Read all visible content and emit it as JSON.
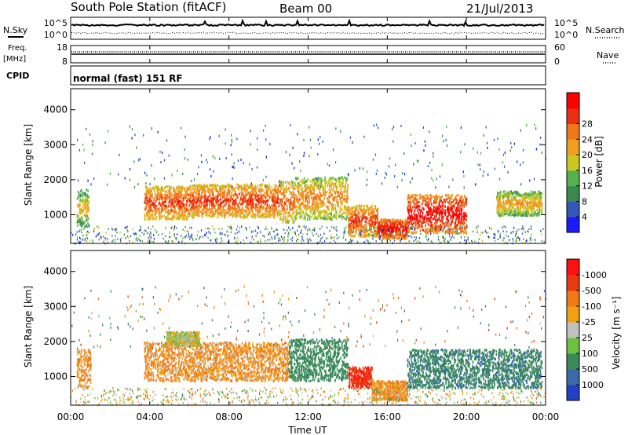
{
  "header": {
    "station": "South Pole Station (fitACF)",
    "beam": "Beam 00",
    "date": "21/Jul/2013"
  },
  "left_labels": {
    "nsky": "N.Sky",
    "freq": "Freq.",
    "mhz": "[MHz]",
    "cpid": "CPID"
  },
  "right_labels": {
    "nsearch": "N.Search",
    "nave": "Nave"
  },
  "cpid_text": "normal (fast) 151 RF",
  "noise_panel": {
    "left_ticks": [
      "10^5",
      "10^0"
    ],
    "right_ticks": [
      "10^5",
      "10^0"
    ]
  },
  "freq_panel": {
    "left_ticks": [
      "18",
      "8"
    ],
    "right_ticks": [
      "60",
      "0"
    ]
  },
  "x_axis": {
    "label": "Time UT",
    "ticks": [
      "00:00",
      "04:00",
      "08:00",
      "12:00",
      "16:00",
      "20:00",
      "00:00"
    ]
  },
  "y_axis": {
    "label": "Slant Range [km]",
    "ticks": [
      "1000",
      "2000",
      "3000",
      "4000"
    ]
  },
  "power_colorbar": {
    "label": "Power [dB]",
    "ticks": [
      "4",
      "8",
      "12",
      "16",
      "20",
      "24",
      "28"
    ],
    "colors": [
      "#1a1aff",
      "#3358b8",
      "#3a8a50",
      "#55b050",
      "#c8c820",
      "#f0a020",
      "#f07818",
      "#e83010",
      "#ff0000"
    ]
  },
  "velocity_colorbar": {
    "label": "Velocity [m s⁻¹]",
    "ticks": [
      "1000",
      "500",
      "100",
      "25",
      "-25",
      "-100",
      "-500",
      "-1000"
    ],
    "colors": [
      "#2040c8",
      "#3a6aa8",
      "#3a8a5a",
      "#6ec040",
      "#c0c0c0",
      "#f0a010",
      "#f07a18",
      "#e83a10",
      "#ff1010"
    ]
  },
  "chart_data": [
    {
      "type": "heatmap",
      "title": "Power",
      "xlabel": "Time UT",
      "ylabel": "Slant Range [km]",
      "xlim": [
        0,
        24
      ],
      "ylim": [
        180,
        4600
      ],
      "colorbar_label": "Power [dB]",
      "colorbar_range": [
        0,
        32
      ],
      "scatter_regions": [
        {
          "t": [
            0.3,
            0.9
          ],
          "r": [
            700,
            1750
          ],
          "level": 12
        },
        {
          "t": [
            3.7,
            6.0
          ],
          "r": [
            900,
            1850
          ],
          "level": 20
        },
        {
          "t": [
            6.0,
            10.5
          ],
          "r": [
            950,
            1900
          ],
          "level": 20
        },
        {
          "t": [
            10.5,
            11.3
          ],
          "r": [
            800,
            2000
          ],
          "level": 18
        },
        {
          "t": [
            11.3,
            14.0
          ],
          "r": [
            900,
            2100
          ],
          "level": 16
        },
        {
          "t": [
            14.0,
            15.5
          ],
          "r": [
            400,
            1300
          ],
          "level": 20
        },
        {
          "t": [
            15.5,
            17.0
          ],
          "r": [
            350,
            900
          ],
          "level": 24
        },
        {
          "t": [
            17.0,
            20.0
          ],
          "r": [
            500,
            1600
          ],
          "level": 24
        },
        {
          "t": [
            21.5,
            23.8
          ],
          "r": [
            1000,
            1700
          ],
          "level": 14
        }
      ]
    },
    {
      "type": "heatmap",
      "title": "Velocity",
      "xlabel": "Time UT",
      "ylabel": "Slant Range [km]",
      "xlim": [
        0,
        24
      ],
      "ylim": [
        180,
        4600
      ],
      "colorbar_label": "Velocity [m s⁻¹]",
      "colorbar_range": [
        -1000,
        1000
      ],
      "scatter_regions": [
        {
          "t": [
            0.3,
            1.0
          ],
          "r": [
            700,
            1800
          ],
          "level": -100
        },
        {
          "t": [
            3.7,
            11.0
          ],
          "r": [
            900,
            2000
          ],
          "level": -100
        },
        {
          "t": [
            4.8,
            6.5
          ],
          "r": [
            1900,
            2300
          ],
          "level": 0
        },
        {
          "t": [
            11.0,
            14.0
          ],
          "r": [
            900,
            2100
          ],
          "level": 200
        },
        {
          "t": [
            14.0,
            15.2
          ],
          "r": [
            700,
            1300
          ],
          "level": -900
        },
        {
          "t": [
            15.2,
            17.0
          ],
          "r": [
            350,
            900
          ],
          "level": -100
        },
        {
          "t": [
            17.0,
            23.8
          ],
          "r": [
            700,
            1800
          ],
          "level": 400
        }
      ]
    }
  ]
}
